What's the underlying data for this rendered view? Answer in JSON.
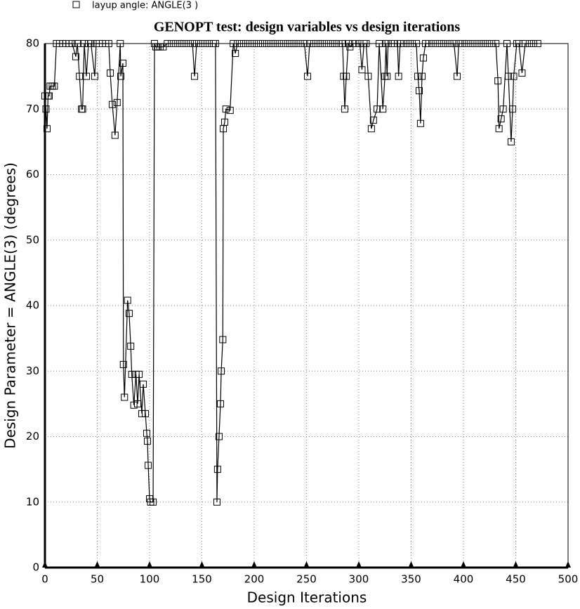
{
  "chart_data": {
    "type": "line",
    "title": "GENOPT test: design variables vs design iterations",
    "x_label": "Design Iterations",
    "y_label": "Design Parameter = ANGLE(3) (degrees)",
    "x": [
      0,
      1,
      2,
      3,
      4,
      5,
      7,
      9,
      11,
      14,
      17,
      20,
      23,
      26,
      29.5,
      31,
      33,
      35,
      36,
      37.6,
      39.6,
      41.6,
      44,
      47.6,
      49,
      52,
      55,
      58,
      61,
      62.4,
      64.4,
      67,
      69,
      72,
      72.5,
      74.5,
      75,
      76,
      79,
      80.5,
      82,
      83,
      85,
      87,
      88.6,
      90,
      92.6,
      94,
      96,
      97.3,
      98,
      98.7,
      100,
      101,
      103.4,
      104.7,
      106,
      108,
      110,
      113,
      117,
      121,
      125,
      129,
      133,
      137,
      141,
      143,
      145,
      149,
      153,
      157,
      161,
      163,
      164.4,
      165,
      166.4,
      167.8,
      168.5,
      170,
      170.5,
      171.8,
      173,
      177,
      180,
      182,
      184,
      188,
      192,
      196,
      200,
      204,
      208,
      212,
      216,
      220,
      224,
      228,
      232,
      236,
      240,
      244,
      248,
      251,
      253,
      257,
      261,
      265,
      269,
      273,
      277,
      281,
      284.5,
      285.5,
      286.6,
      288,
      290,
      291.5,
      294,
      297,
      301,
      303,
      305,
      307,
      309,
      312,
      314,
      317.5,
      319.5,
      323,
      325,
      326,
      327,
      328,
      331,
      334,
      337,
      338,
      339.5,
      343,
      347,
      351,
      355,
      356.4,
      357.7,
      359,
      360.4,
      361.7,
      363.8,
      367,
      371,
      375,
      379,
      383,
      387,
      391,
      394,
      395.5,
      399,
      403,
      407,
      411,
      415,
      419,
      423,
      427,
      431,
      433,
      434,
      436,
      438,
      441.6,
      443,
      445.6,
      447,
      448,
      451,
      453,
      456,
      459,
      463,
      467,
      471
    ],
    "series": [
      {
        "name": "layup angle: ANGLE(3 )",
        "color": "#000000",
        "marker": "square",
        "values": [
          72,
          70,
          67,
          72,
          72,
          73.5,
          73.5,
          73.5,
          80,
          80,
          80,
          80,
          80,
          80,
          78,
          80,
          75,
          70,
          70,
          80,
          75,
          80,
          80,
          75,
          80,
          80,
          80,
          80,
          80,
          75.5,
          70.7,
          66,
          71,
          80,
          75,
          77,
          31,
          26,
          40.8,
          38.8,
          33.8,
          29.5,
          24.8,
          29.5,
          25,
          29.5,
          23.5,
          28,
          23.5,
          20.5,
          19.3,
          15.6,
          10.5,
          10,
          10,
          80,
          79.5,
          79.5,
          79.5,
          79.5,
          80,
          80,
          80,
          80,
          80,
          80,
          80,
          75,
          80,
          80,
          80,
          80,
          80,
          80,
          10,
          15,
          20,
          25,
          30,
          34.8,
          67,
          68,
          70,
          69.8,
          80,
          78.5,
          80,
          80,
          80,
          80,
          80,
          80,
          80,
          80,
          80,
          80,
          80,
          80,
          80,
          80,
          80,
          80,
          80,
          75,
          80,
          80,
          80,
          80,
          80,
          80,
          80,
          80,
          80,
          75,
          70,
          75,
          80,
          79.5,
          80,
          80,
          80,
          76,
          80,
          80,
          75,
          67,
          68.3,
          70,
          80,
          70,
          75,
          80,
          75,
          80,
          80,
          80,
          80,
          75,
          80,
          80,
          80,
          80,
          80,
          75,
          72.8,
          67.8,
          75,
          77.8,
          80,
          80,
          80,
          80,
          80,
          80,
          80,
          80,
          75,
          80,
          80,
          80,
          80,
          80,
          80,
          80,
          80,
          80,
          80,
          74.3,
          67,
          68.5,
          70,
          80,
          75,
          65,
          70,
          75,
          80,
          80,
          75.5,
          80,
          80,
          80,
          80
        ]
      }
    ],
    "xlim": [
      0,
      500
    ],
    "ylim": [
      0,
      80
    ],
    "xticks": [
      0,
      50,
      100,
      150,
      200,
      250,
      300,
      350,
      400,
      450,
      500
    ],
    "yticks": [
      0,
      10,
      20,
      30,
      40,
      50,
      60,
      70,
      80
    ],
    "grid": true,
    "legend": "top-left"
  }
}
